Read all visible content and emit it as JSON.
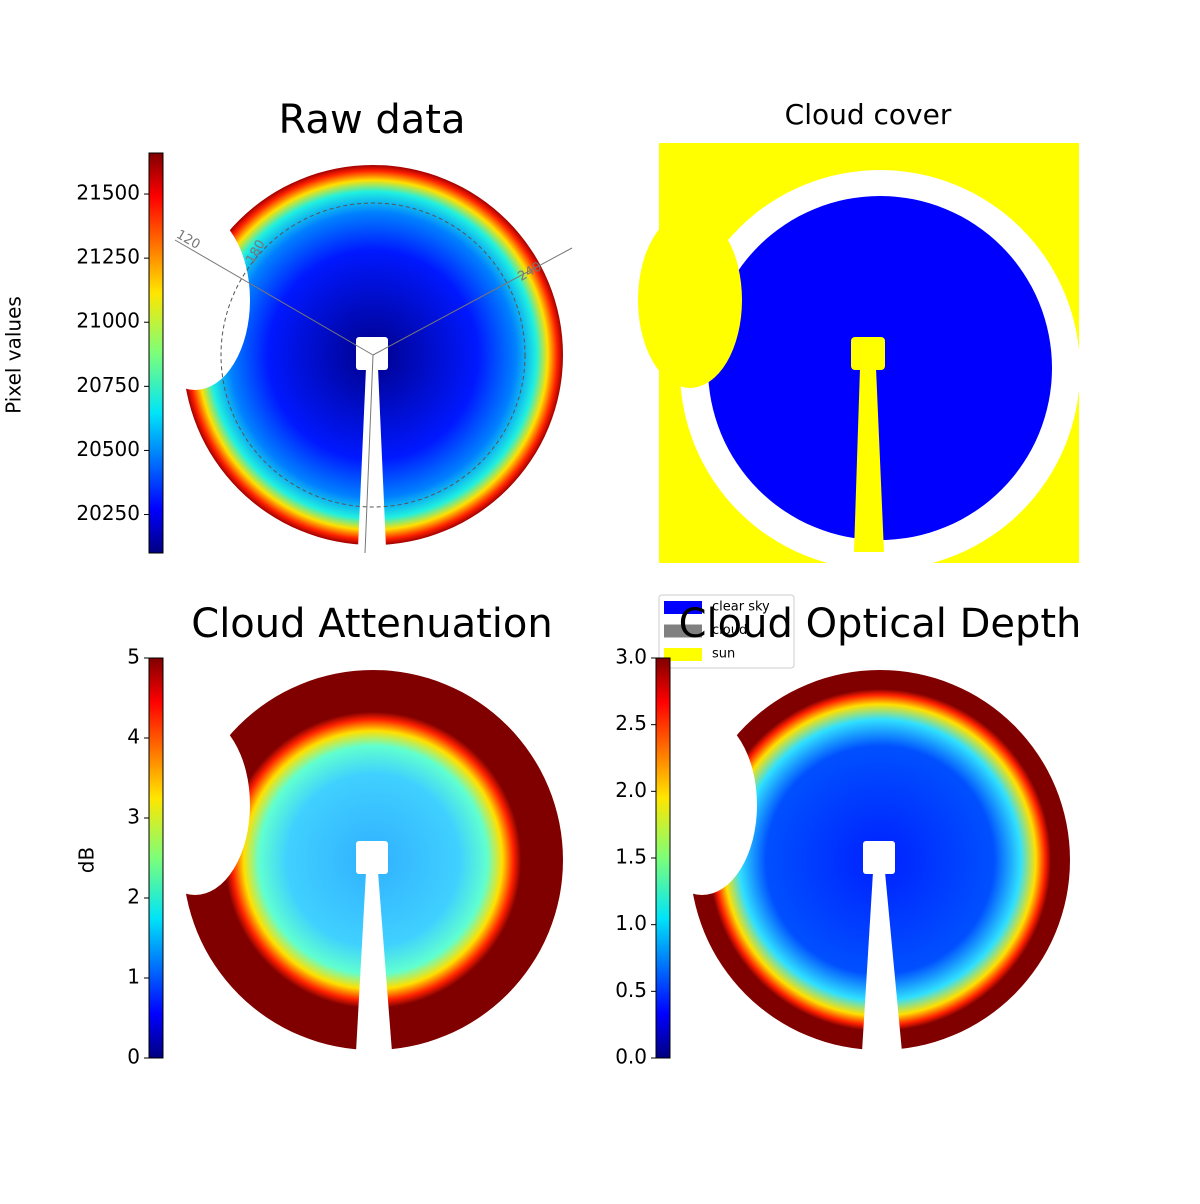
{
  "chart_data": [
    {
      "type": "image",
      "title": "Raw data",
      "colorbar_label": "Pixel values",
      "colormap": "jet",
      "clim": [
        20100,
        21660
      ],
      "cticks": [
        20250,
        20500,
        20750,
        21000,
        21250,
        21500
      ],
      "annotations": [
        "120",
        "180",
        "240"
      ]
    },
    {
      "type": "classes",
      "title": "Cloud cover",
      "series": [
        {
          "name": "clear sky",
          "color": "#0000ff"
        },
        {
          "name": "cloud",
          "color": "#808080"
        },
        {
          "name": "sun",
          "color": "#ffff00"
        }
      ]
    },
    {
      "type": "image",
      "title": "Cloud Attenuation",
      "colorbar_label": "dB",
      "colormap": "jet",
      "clim": [
        0,
        5
      ],
      "cticks": [
        0,
        1,
        2,
        3,
        4,
        5
      ]
    },
    {
      "type": "image",
      "title": "Cloud Optical Depth",
      "colormap": "jet",
      "clim": [
        0,
        3
      ],
      "cticks": [
        {
          "value": 0,
          "label": "0.0"
        },
        {
          "value": 0.5,
          "label": "0.5"
        },
        {
          "value": 1,
          "label": "1.0"
        },
        {
          "value": 1.5,
          "label": "1.5"
        },
        {
          "value": 2,
          "label": "2.0"
        },
        {
          "value": 2.5,
          "label": "2.5"
        },
        {
          "value": 3,
          "label": "3.0"
        }
      ]
    }
  ]
}
